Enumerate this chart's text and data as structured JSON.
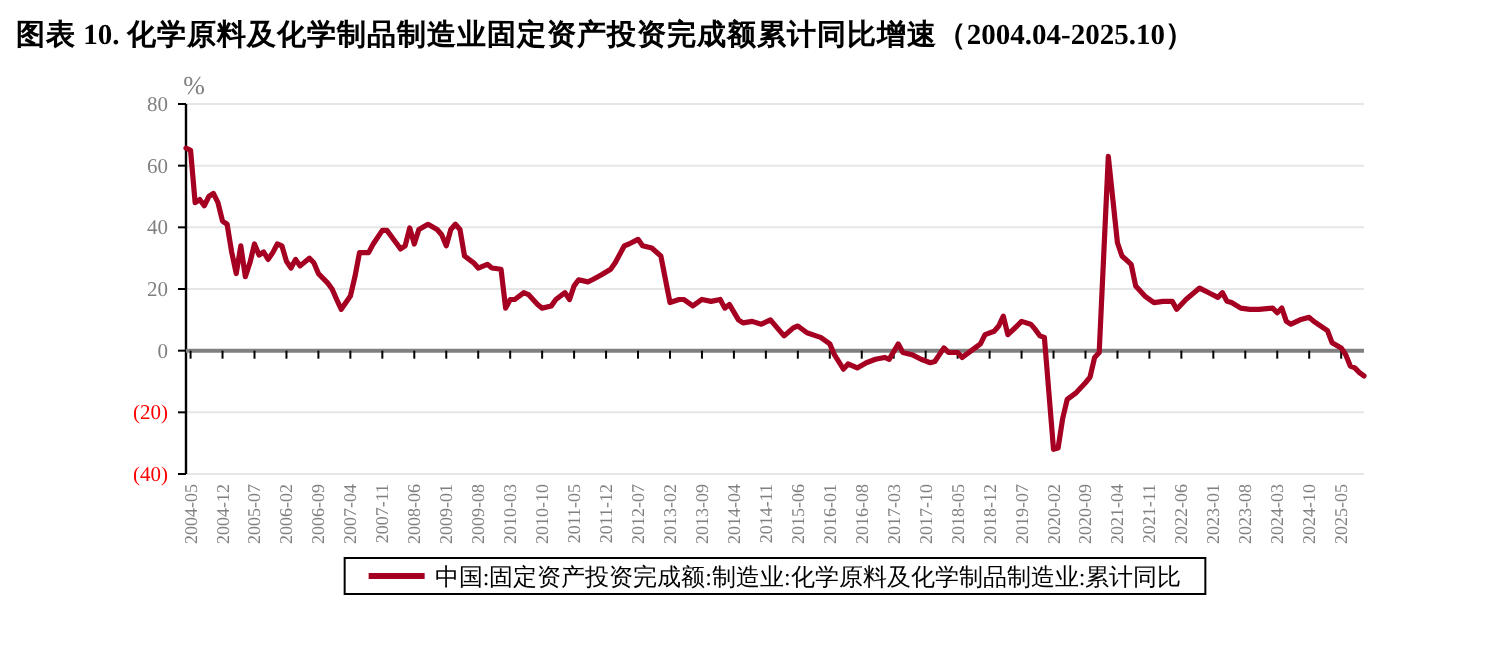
{
  "chart_data": {
    "type": "line",
    "title": "图表 10. 化学原料及化学制品制造业固定资产投资完成额累计同比增速（2004.04-2025.10）",
    "ylabel": "%",
    "xlim": [
      "2004-04",
      "2025-10"
    ],
    "xticks": [
      "2004-05",
      "2004-12",
      "2005-07",
      "2006-02",
      "2006-09",
      "2007-04",
      "2007-11",
      "2008-06",
      "2009-01",
      "2009-08",
      "2010-03",
      "2010-10",
      "2011-05",
      "2011-12",
      "2012-07",
      "2013-02",
      "2013-09",
      "2014-04",
      "2014-11",
      "2015-06",
      "2016-01",
      "2016-08",
      "2017-03",
      "2017-10",
      "2018-05",
      "2018-12",
      "2019-07",
      "2020-02",
      "2020-09",
      "2021-04",
      "2021-11",
      "2022-06",
      "2023-01",
      "2023-08",
      "2024-03",
      "2024-10",
      "2025-05"
    ],
    "ylim": [
      -40,
      80
    ],
    "yticks": [
      {
        "value": -40,
        "label": "(40)"
      },
      {
        "value": -20,
        "label": "(20)"
      },
      0,
      20,
      40,
      60,
      80
    ],
    "grid": "y",
    "legend": "bottom",
    "marker": "none",
    "series": [
      {
        "name": "中国:固定资产投资完成额:制造业:化学原料及化学制品制造业:累计同比",
        "color": "#a50021",
        "x": [
          "2004-04",
          "2004-05",
          "2004-06",
          "2004-07",
          "2004-08",
          "2004-09",
          "2004-10",
          "2004-11",
          "2004-12",
          "2005-01",
          "2005-02",
          "2005-03",
          "2005-04",
          "2005-05",
          "2005-06",
          "2005-07",
          "2005-08",
          "2005-09",
          "2005-10",
          "2005-11",
          "2005-12",
          "2006-01",
          "2006-02",
          "2006-03",
          "2006-04",
          "2006-05",
          "2006-07",
          "2006-08",
          "2006-09",
          "2006-11",
          "2006-12",
          "2007-01",
          "2007-02",
          "2007-04",
          "2007-05",
          "2007-06",
          "2007-08",
          "2007-09",
          "2007-11",
          "2007-12",
          "2008-02",
          "2008-03",
          "2008-04",
          "2008-05",
          "2008-06",
          "2008-07",
          "2008-09",
          "2008-11",
          "2008-12",
          "2009-01",
          "2009-02",
          "2009-03",
          "2009-04",
          "2009-05",
          "2009-07",
          "2009-08",
          "2009-10",
          "2009-11",
          "2010-01",
          "2010-02",
          "2010-03",
          "2010-04",
          "2010-06",
          "2010-07",
          "2010-09",
          "2010-10",
          "2010-12",
          "2011-01",
          "2011-03",
          "2011-04",
          "2011-05",
          "2011-06",
          "2011-08",
          "2011-09",
          "2011-11",
          "2012-01",
          "2012-02",
          "2012-04",
          "2012-05",
          "2012-07",
          "2012-08",
          "2012-10",
          "2012-12",
          "2013-02",
          "2013-04",
          "2013-05",
          "2013-07",
          "2013-09",
          "2013-11",
          "2014-01",
          "2014-02",
          "2014-03",
          "2014-05",
          "2014-06",
          "2014-08",
          "2014-10",
          "2014-12",
          "2015-02",
          "2015-03",
          "2015-05",
          "2015-06",
          "2015-08",
          "2015-10",
          "2015-11",
          "2016-01",
          "2016-02",
          "2016-04",
          "2016-05",
          "2016-07",
          "2016-09",
          "2016-11",
          "2017-01",
          "2017-02",
          "2017-04",
          "2017-05",
          "2017-07",
          "2017-09",
          "2017-11",
          "2017-12",
          "2018-02",
          "2018-03",
          "2018-05",
          "2018-06",
          "2018-08",
          "2018-10",
          "2018-11",
          "2019-01",
          "2019-02",
          "2019-03",
          "2019-04",
          "2019-06",
          "2019-07",
          "2019-09",
          "2019-10",
          "2019-11",
          "2019-12",
          "2020-02",
          "2020-03",
          "2020-04",
          "2020-05",
          "2020-07",
          "2020-09",
          "2020-10",
          "2020-11",
          "2020-12",
          "2021-02",
          "2021-04",
          "2021-05",
          "2021-07",
          "2021-08",
          "2021-10",
          "2021-12",
          "2022-02",
          "2022-04",
          "2022-05",
          "2022-07",
          "2022-10",
          "2022-12",
          "2023-02",
          "2023-03",
          "2023-04",
          "2023-05",
          "2023-07",
          "2023-09",
          "2023-11",
          "2024-02",
          "2024-03",
          "2024-04",
          "2024-05",
          "2024-06",
          "2024-08",
          "2024-10",
          "2024-11",
          "2025-02",
          "2025-03",
          "2025-05",
          "2025-06",
          "2025-07",
          "2025-08",
          "2025-09",
          "2025-10"
        ],
        "values": [
          65.7,
          65,
          48,
          49,
          47,
          50,
          51,
          48,
          42,
          41,
          32,
          25,
          34,
          24,
          28.5,
          34.6,
          31,
          32,
          29.6,
          31.8,
          34.6,
          34,
          29,
          26.8,
          29.6,
          27.5,
          30,
          28.5,
          25,
          22,
          20,
          16.6,
          13.4,
          17.7,
          24,
          31.8,
          31.8,
          34.6,
          39,
          39,
          35,
          33,
          34,
          39.8,
          34.6,
          39.3,
          41,
          39.3,
          37.6,
          34,
          39.3,
          41,
          39.3,
          30.7,
          28.5,
          26.8,
          28,
          26.8,
          26.4,
          13.8,
          16.6,
          16.6,
          18.8,
          18.2,
          15,
          13.8,
          14.5,
          16.6,
          18.8,
          16.6,
          21,
          23,
          22.3,
          23,
          24.6,
          26.4,
          28.5,
          34,
          34.6,
          36.1,
          34,
          33.3,
          30.7,
          15.6,
          16.6,
          16.6,
          14.5,
          16.6,
          16,
          16.6,
          13.8,
          15,
          10,
          9,
          9.5,
          8.6,
          10,
          6.5,
          4.8,
          7.4,
          8,
          5.8,
          4.8,
          4.3,
          2.2,
          -1.3,
          -6,
          -4.3,
          -5.6,
          -3.9,
          -2.8,
          -2.2,
          -2.8,
          2.2,
          -0.6,
          -1.3,
          -2.8,
          -3.9,
          -3.5,
          0.9,
          -0.6,
          -0.6,
          -2.2,
          0,
          2.2,
          5.2,
          6.3,
          8,
          11.2,
          5.2,
          8,
          9.5,
          8.6,
          6.9,
          4.8,
          4.3,
          -32,
          -31.6,
          -22,
          -15.8,
          -13.6,
          -10.4,
          -8.6,
          -2.2,
          -0.6,
          63,
          35,
          30.7,
          28,
          21,
          17.7,
          15.6,
          16,
          16,
          13.4,
          16.6,
          20.3,
          18.8,
          17.3,
          18.8,
          16,
          15.6,
          13.8,
          13.4,
          13.4,
          13.8,
          12.3,
          13.8,
          9.5,
          8.6,
          10,
          10.8,
          9.5,
          6.5,
          2.6,
          0.9,
          -1.3,
          -5,
          -5.6,
          -7.1,
          -8.2
        ]
      }
    ]
  }
}
